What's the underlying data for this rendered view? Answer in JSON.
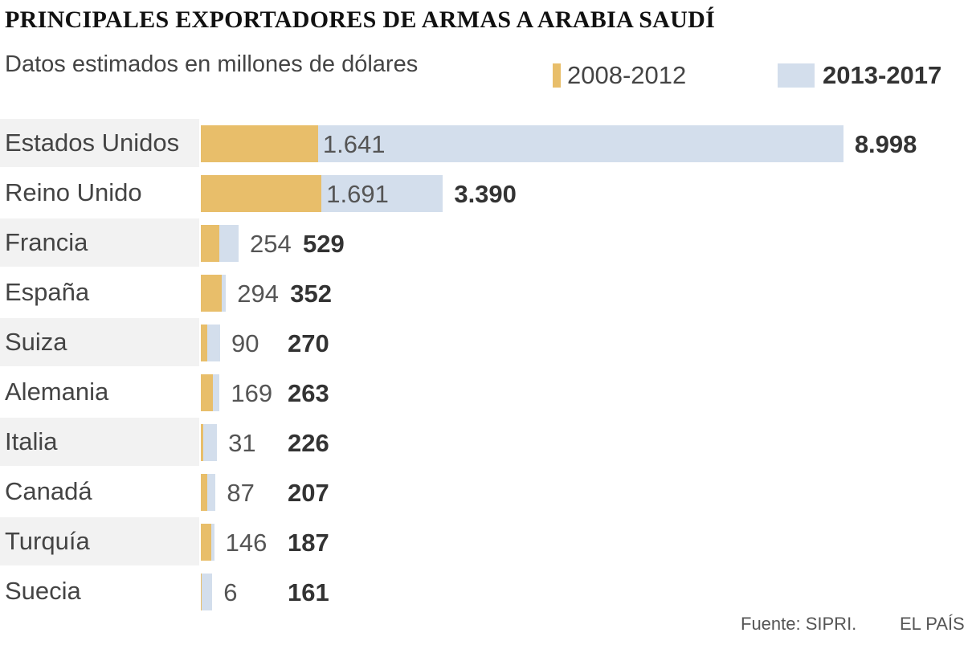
{
  "header": {
    "title": "PRINCIPALES EXPORTADORES DE ARMAS A ARABIA SAUDÍ",
    "subtitle": "Datos estimados en millones de dólares"
  },
  "legend": [
    {
      "label": "2008-2012",
      "color": "#E8BE6A"
    },
    {
      "label": "2013-2017",
      "color": "#D3DEEC"
    }
  ],
  "colors": {
    "period_a": "#E8BE6A",
    "period_b": "#D3DEEC",
    "row_bg": "#F2F2F2"
  },
  "chart_data": {
    "type": "bar",
    "orientation": "horizontal",
    "title": "PRINCIPALES EXPORTADORES DE ARMAS A ARABIA SAUDÍ",
    "subtitle": "Datos estimados en millones de dólares",
    "categories": [
      "Estados Unidos",
      "Reino Unido",
      "Francia",
      "España",
      "Suiza",
      "Alemania",
      "Italia",
      "Canadá",
      "Turquía",
      "Suecia"
    ],
    "series": [
      {
        "name": "2008-2012",
        "values": [
          1641,
          1691,
          254,
          294,
          90,
          169,
          31,
          87,
          146,
          6
        ],
        "labels": [
          "1.641",
          "1.691",
          "254",
          "294",
          "90",
          "169",
          "31",
          "87",
          "146",
          "6"
        ]
      },
      {
        "name": "2013-2017",
        "values": [
          8998,
          3390,
          529,
          352,
          270,
          263,
          226,
          207,
          187,
          161
        ],
        "labels": [
          "8.998",
          "3.390",
          "529",
          "352",
          "270",
          "263",
          "226",
          "207",
          "187",
          "161"
        ]
      }
    ],
    "legend_position": "top-right",
    "grid": false
  },
  "footer": {
    "source": "Fuente: SIPRI.",
    "brand": "EL PAÍS"
  }
}
